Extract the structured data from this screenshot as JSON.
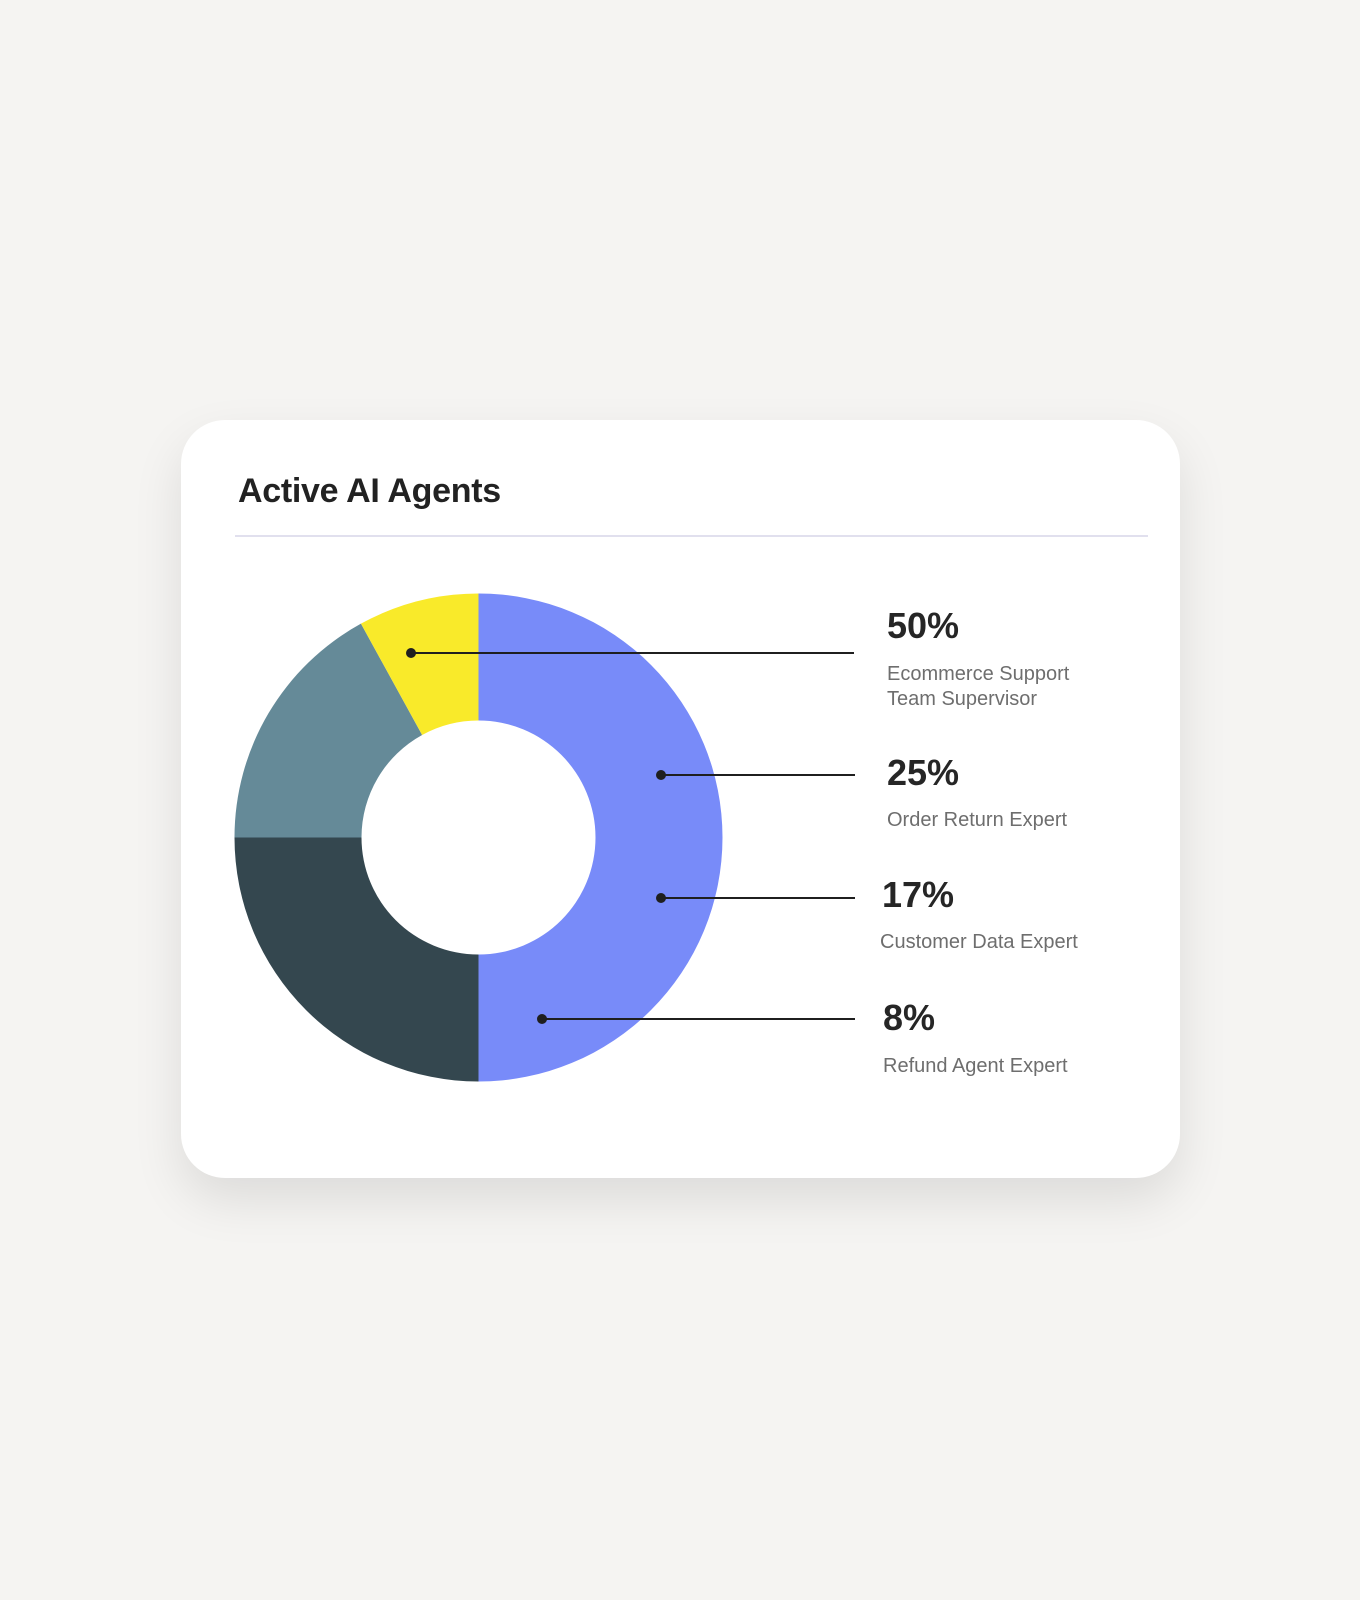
{
  "chart_data": {
    "type": "pie",
    "variant": "donut",
    "title": "Active AI Agents",
    "start_angle": "top",
    "direction": "clockwise",
    "slices": [
      {
        "label": "Ecommerce Support Team Supervisor",
        "value": 50,
        "value_label": "50%",
        "color": "#788bf9"
      },
      {
        "label": "Order Return Expert",
        "value": 25,
        "value_label": "25%",
        "color": "#34474f"
      },
      {
        "label": "Customer Data Expert",
        "value": 17,
        "value_label": "17%",
        "color": "#658a98"
      },
      {
        "label": "Refund Agent Expert",
        "value": 8,
        "value_label": "8%",
        "color": "#f9ea2a"
      }
    ],
    "legend": "right"
  },
  "labels": {
    "slice0_line1": "Ecommerce Support",
    "slice0_line2": "Team Supervisor"
  }
}
